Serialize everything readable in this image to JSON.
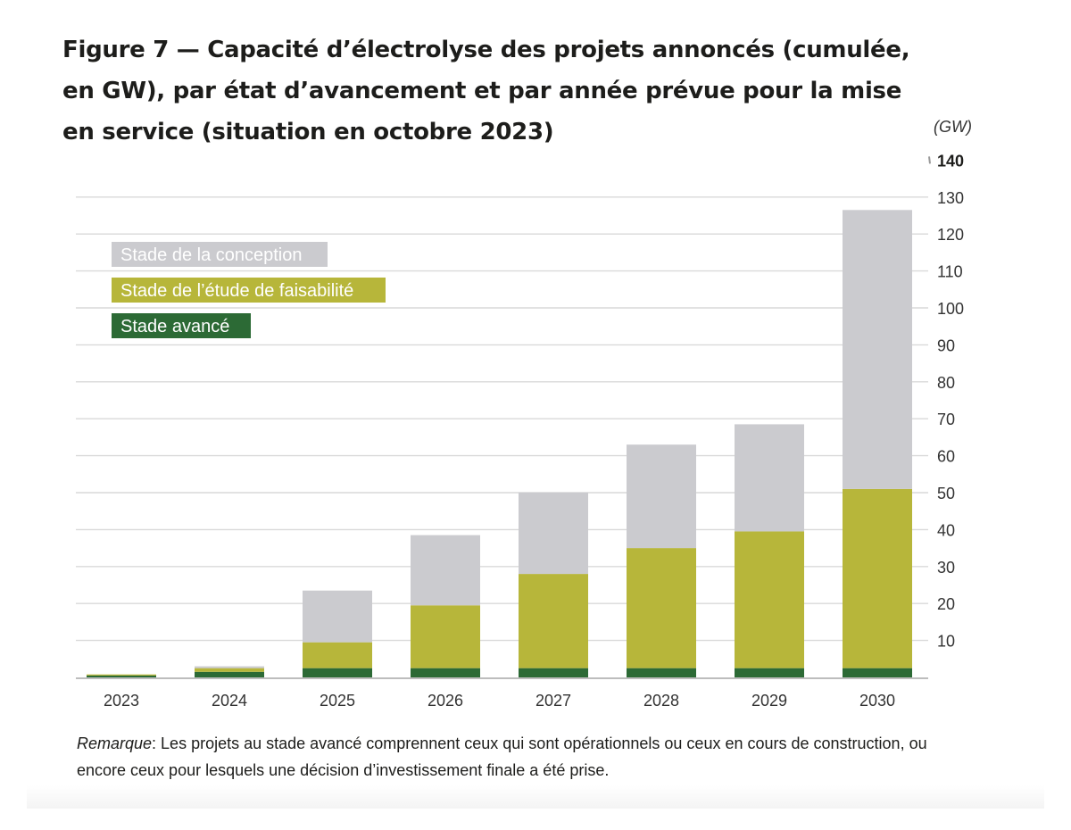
{
  "title": "Figure 7 — Capacité d’électrolyse des projets annoncés (cumulée, en GW), par état d’avancement et par année prévue pour la mise en service (situation en octobre 2023)",
  "note": {
    "label": "Remarque",
    "text": ": Les projets au stade avancé comprennent ceux qui sont opérationnels ou ceux en cours de construction, ou encore ceux pour lesquels une décision d’investissement finale a été prise."
  },
  "colors": {
    "conception": "#cbcbcf",
    "faisabilite": "#b7b63a",
    "avance": "#2c6a35",
    "grid": "#d9d9d9",
    "axis": "#bdbdbd",
    "legend_text_light": "#ffffff"
  },
  "chart_data": {
    "type": "bar",
    "stacked": true,
    "categories": [
      "2023",
      "2024",
      "2025",
      "2026",
      "2027",
      "2028",
      "2029",
      "2030"
    ],
    "series": [
      {
        "name": "Stade avancé",
        "key": "avance",
        "values": [
          0.5,
          1.5,
          2.5,
          2.5,
          2.5,
          2.5,
          2.5,
          2.5
        ]
      },
      {
        "name": "Stade de l’étude de faisabilité",
        "key": "faisabilite",
        "values": [
          0.3,
          1.0,
          7.0,
          17.0,
          25.5,
          32.5,
          37.0,
          48.5
        ]
      },
      {
        "name": "Stade de la conception",
        "key": "conception",
        "values": [
          0.0,
          0.5,
          14.0,
          19.0,
          22.0,
          28.0,
          29.0,
          75.5
        ]
      }
    ],
    "ylabel": "(GW)",
    "ylim": [
      0,
      140
    ],
    "yticks": [
      10,
      20,
      30,
      40,
      50,
      60,
      70,
      80,
      90,
      100,
      110,
      120,
      130,
      140
    ],
    "y_axis_position": "right",
    "grid": true,
    "legend": {
      "placement": "top-left",
      "entries": [
        "Stade de la conception",
        "Stade de l’étude de faisabilité",
        "Stade avancé"
      ]
    }
  }
}
